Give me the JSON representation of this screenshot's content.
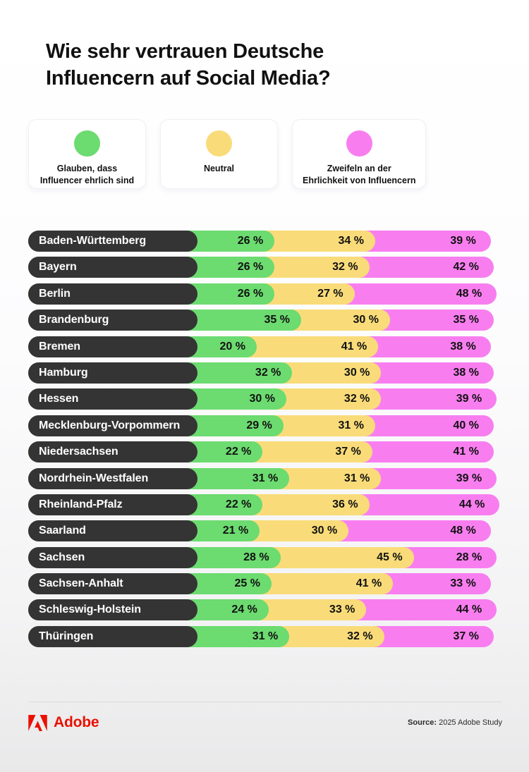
{
  "title": {
    "text": "Wie sehr vertrauen Deutsche Influencern auf Social Media?",
    "lines": [
      "Wie sehr vertrauen Deutsche",
      "Influencern auf Social Media?"
    ]
  },
  "legend": {
    "items": [
      {
        "label": "Glauben, dass Influencer ehrlich sind",
        "lines": [
          "Glauben, dass",
          "Influencer ehrlich sind"
        ],
        "color": "#6CDB70"
      },
      {
        "label": "Neutral",
        "lines": [
          "Neutral"
        ],
        "color": "#F9DC79"
      },
      {
        "label": "Zweifeln an der Ehrlichkeit von Influencern",
        "lines": [
          "Zweifeln an der",
          "Ehrlichkeit von Influencern"
        ],
        "color": "#F87EF0"
      }
    ]
  },
  "chart_data": {
    "type": "bar",
    "stacked": true,
    "orientation": "horizontal",
    "unit": "%",
    "value_suffix": " %",
    "category_pill_color": "#343434",
    "value_text_color": "#111111",
    "categories": [
      "Baden-Württemberg",
      "Bayern",
      "Berlin",
      "Brandenburg",
      "Bremen",
      "Hamburg",
      "Hessen",
      "Mecklenburg-Vorpommern",
      "Niedersachsen",
      "Nordrhein-Westfalen",
      "Rheinland-Pfalz",
      "Saarland",
      "Sachsen",
      "Sachsen-Anhalt",
      "Schleswig-Holstein",
      "Thüringen"
    ],
    "series": [
      {
        "name": "Glauben, dass Influencer ehrlich sind",
        "color": "#6CDB70",
        "values": [
          26,
          26,
          26,
          35,
          20,
          32,
          30,
          29,
          22,
          31,
          22,
          21,
          28,
          25,
          24,
          31
        ]
      },
      {
        "name": "Neutral",
        "color": "#F9DC79",
        "values": [
          34,
          32,
          27,
          30,
          41,
          30,
          32,
          31,
          37,
          31,
          36,
          30,
          45,
          41,
          33,
          32
        ]
      },
      {
        "name": "Zweifeln an der Ehrlichkeit von Influencern",
        "color": "#F87EF0",
        "values": [
          39,
          42,
          48,
          35,
          38,
          38,
          39,
          40,
          41,
          39,
          44,
          48,
          28,
          33,
          44,
          37
        ]
      }
    ]
  },
  "footer": {
    "brand": "Adobe",
    "source_label": "Source:",
    "source_text": "2025 Adobe Study"
  }
}
